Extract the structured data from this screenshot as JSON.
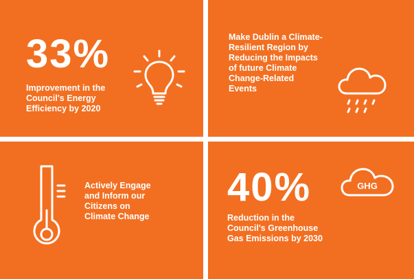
{
  "tiles": [
    {
      "stat": "33%",
      "text_lines": [
        "Improvement in the",
        "Council's Energy",
        "Efficiency by 2020"
      ],
      "icon": "lightbulb-icon"
    },
    {
      "text_lines": [
        "Make Dublin a Climate-",
        "Resilient Region by",
        "Reducing the Impacts",
        "of future Climate",
        "Change-Related",
        "Events"
      ],
      "icon": "rain-cloud-icon"
    },
    {
      "text_lines": [
        "Actively Engage",
        "and Inform our",
        "Citizens on",
        "Climate Change"
      ],
      "icon": "thermometer-icon"
    },
    {
      "stat": "40%",
      "text_lines": [
        "Reduction in the",
        "Council's Greenhouse",
        "Gas Emissions by 2030"
      ],
      "icon": "ghg-cloud-icon",
      "icon_label": "GHG"
    }
  ],
  "colors": {
    "tile_background": "#F26F21",
    "foreground": "#FFFFFF",
    "gap": "#FFFFFF"
  }
}
